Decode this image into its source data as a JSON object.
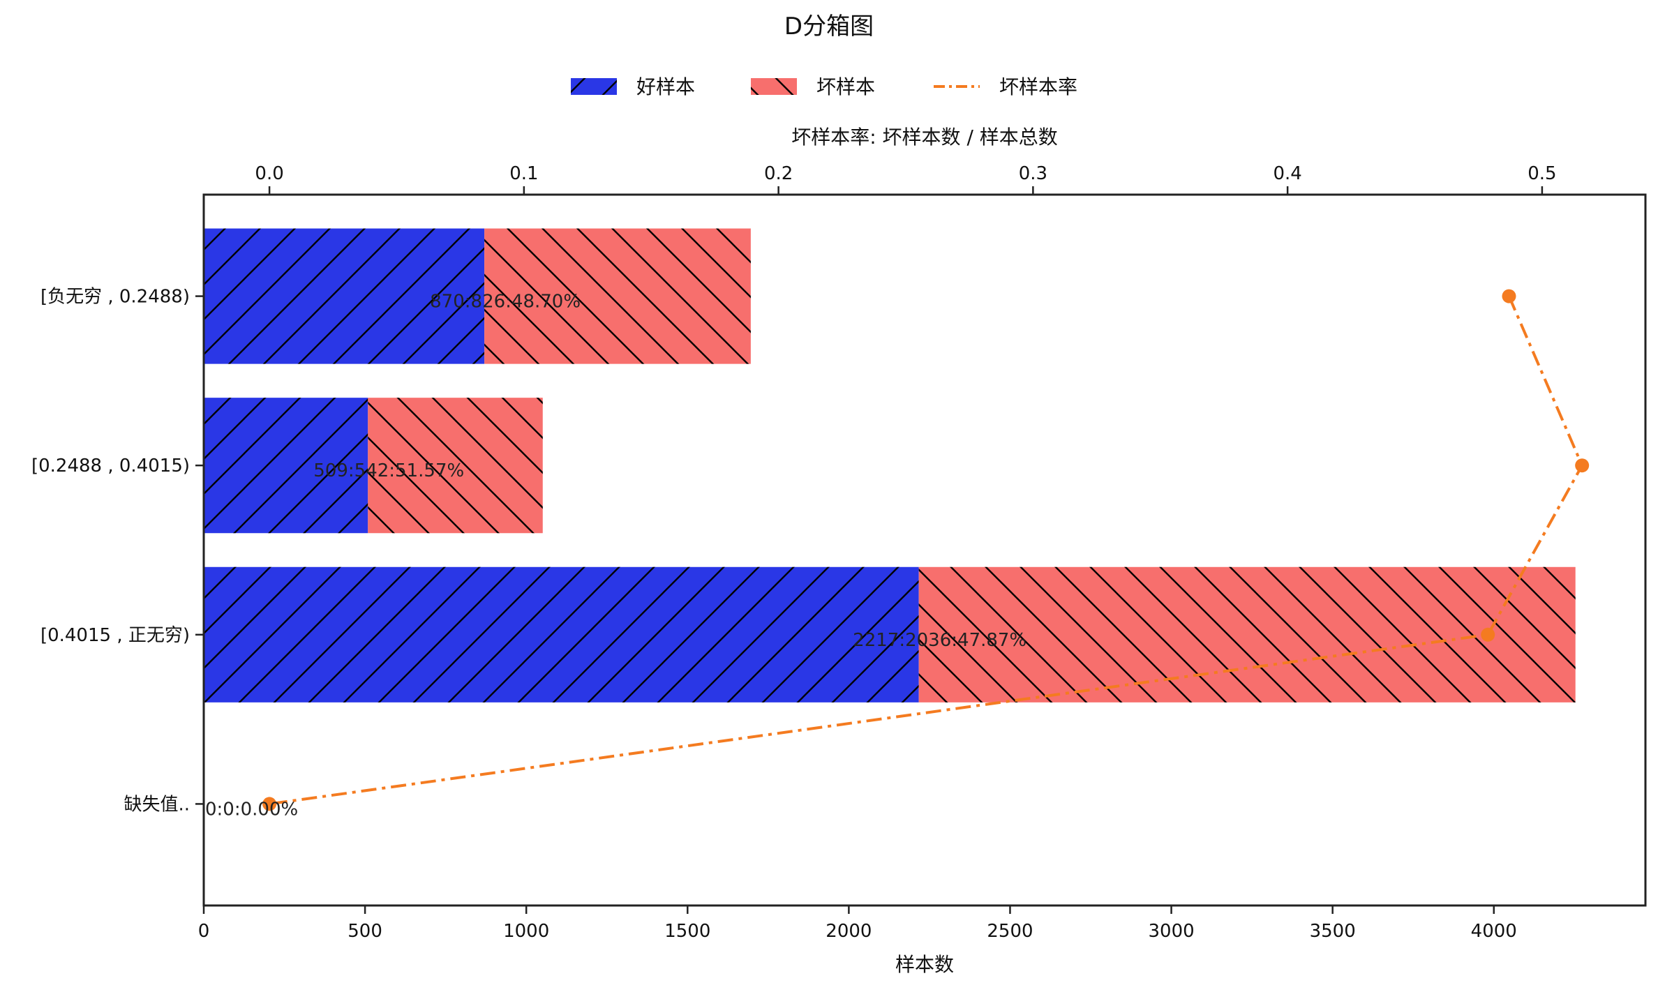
{
  "chart_data": {
    "type": "bar",
    "orientation": "horizontal",
    "stacked": true,
    "title": "D分箱图",
    "xlabel": "样本数",
    "x2label": "坏样本率: 坏样本数 / 样本总数",
    "categories": [
      "[负无穷 , 0.2488)",
      "[0.2488 , 0.4015)",
      "[0.4015 , 正无穷)",
      "缺失值.."
    ],
    "series": [
      {
        "name": "好样本",
        "type": "bar",
        "axis": "bottom",
        "color": "#2a37e6",
        "hatch": "/",
        "values": [
          870,
          509,
          2217,
          0
        ]
      },
      {
        "name": "坏样本",
        "type": "bar",
        "axis": "bottom",
        "color": "#f76f6d",
        "hatch": "\\",
        "values": [
          826,
          542,
          2036,
          0
        ]
      },
      {
        "name": "坏样本率",
        "type": "line",
        "axis": "top",
        "color": "#f47b20",
        "linestyle": "dash-dot",
        "marker": "circle",
        "values": [
          0.487,
          0.5157,
          0.4787,
          0.0
        ]
      }
    ],
    "bar_labels": [
      "870:826:48.70%",
      "509:542:51.57%",
      "2217:2036:47.87%",
      "0:0:0.00%"
    ],
    "xlim": [
      0,
      4470
    ],
    "xticks": [
      0,
      500,
      1000,
      1500,
      2000,
      2500,
      3000,
      3500,
      4000
    ],
    "x2lim": [
      -0.0258,
      0.5406
    ],
    "x2ticks": [
      0.0,
      0.1,
      0.2,
      0.3,
      0.4,
      0.5
    ],
    "legend_position": "top-center",
    "grid": false
  }
}
